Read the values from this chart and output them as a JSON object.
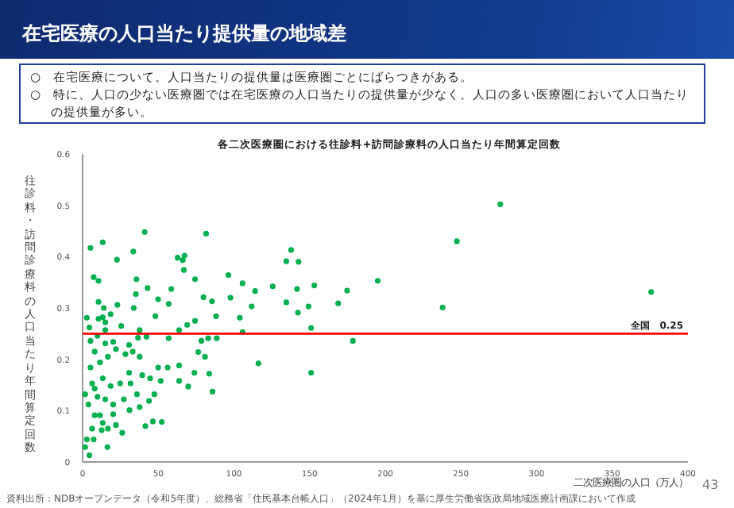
{
  "chart_data": {
    "type": "scatter",
    "title": "在宅医療の人口当たり提供量の地域差",
    "subtitle": "各二次医療圏における往診料+訪問診療料の人口当たり年間算定回数",
    "xlabel": "二次医療圏の人口（万人）",
    "ylabel": "往診料・訪問診療料の人口当たり年間算定回数",
    "annotations": [
      "○　在宅医療について、人口当たりの提供量は医療圏ごとにばらつきがある。",
      "○　特に、人口の少ない医療圏では在宅医療の人口当たりの提供量が少なく、人口の多い医療圏において人口当たりの提供量が多い。",
      "資料出所：NDBオープンデータ（令和5年度）、総務省「住民基本台帳人口」（2024年1月）を基に厚生労働省医政局地域医療計画課において作成",
      "43"
    ],
    "xlim": [
      0,
      400
    ],
    "xticks": [
      0,
      50,
      100,
      150,
      200,
      250,
      300,
      350,
      400
    ],
    "ylim": [
      0,
      0.6
    ],
    "yticks": [
      0,
      0.1,
      0.2,
      0.3,
      0.4,
      0.5,
      0.6
    ],
    "marker": "circle",
    "ref_lines": [
      {
        "axis": "y",
        "value": 0.25,
        "label": "全国　0.25",
        "color": "#ff0000"
      }
    ],
    "series": [
      {
        "color": "#00b050",
        "x": [
          5.2,
          13.3,
          41,
          81.6,
          33.5,
          22.7,
          62.8,
          67.3,
          66.2,
          66.9,
          96.3,
          137.8,
          134.6,
          142.7,
          195,
          7.3,
          10.5,
          35.6,
          35.2,
          42.9,
          58.6,
          74.3,
          79.9,
          85.5,
          97.7,
          105.7,
          114,
          125.6,
          141.7,
          153.1,
          174.8,
          168.9,
          134.6,
          111.7,
          149.3,
          142.3,
          49.9,
          56.9,
          10.5,
          14,
          23,
          33.8,
          2.8,
          10.5,
          48.1,
          88.2,
          103.9,
          63.8,
          74.3,
          69.1,
          105.7,
          151,
          178.6,
          83,
          88.6,
          78.5,
          76.4,
          116.2,
          80.9,
          83.7,
          151,
          73.9,
          69.8,
          63.8,
          63.8,
          85.8,
          49.9,
          51.6,
          47.4,
          43.9,
          41.5,
          46.4,
          52.3,
          37.7,
          31,
          26.2,
          20.2,
          22,
          12.6,
          16.4,
          4.5,
          1.7,
          2.8,
          6.3,
          8,
          3.8,
          9.8,
          1.7,
          6.3,
          13.3,
          18.5,
          24.8,
          30.7,
          39.4,
          44.6,
          5.2,
          11.5,
          16.7,
          22,
          28.3,
          33.1,
          37.7,
          8,
          5.2,
          9.8,
          15,
          20.2,
          30.7,
          36.6,
          42.2,
          4.5,
          15,
          25.5,
          15,
          18.5,
          13.3,
          31.7,
          35.9,
          27.2,
          15,
          8,
          20.2,
          11.5,
          16.7,
          7.3,
          13.3,
          56.9,
          37.7,
          56.2,
          237.9,
          247.3,
          276,
          375.7
        ],
        "values": [
          0.417,
          0.428,
          0.448,
          0.445,
          0.41,
          0.394,
          0.398,
          0.402,
          0.393,
          0.374,
          0.364,
          0.413,
          0.391,
          0.39,
          0.353,
          0.36,
          0.353,
          0.356,
          0.327,
          0.339,
          0.337,
          0.356,
          0.321,
          0.313,
          0.32,
          0.348,
          0.333,
          0.342,
          0.337,
          0.344,
          0.334,
          0.309,
          0.311,
          0.303,
          0.303,
          0.291,
          0.317,
          0.308,
          0.312,
          0.3,
          0.306,
          0.3,
          0.281,
          0.279,
          0.284,
          0.284,
          0.281,
          0.257,
          0.275,
          0.267,
          0.253,
          0.261,
          0.236,
          0.241,
          0.241,
          0.236,
          0.214,
          0.192,
          0.205,
          0.172,
          0.174,
          0.174,
          0.147,
          0.158,
          0.188,
          0.137,
          0.184,
          0.158,
          0.132,
          0.119,
          0.07,
          0.079,
          0.078,
          0.107,
          0.101,
          0.057,
          0.093,
          0.072,
          0.062,
          0.029,
          0.013,
          0.029,
          0.044,
          0.065,
          0.091,
          0.112,
          0.127,
          0.132,
          0.153,
          0.163,
          0.148,
          0.153,
          0.174,
          0.169,
          0.163,
          0.184,
          0.194,
          0.205,
          0.22,
          0.21,
          0.215,
          0.205,
          0.215,
          0.236,
          0.246,
          0.231,
          0.234,
          0.228,
          0.242,
          0.244,
          0.262,
          0.257,
          0.265,
          0.272,
          0.288,
          0.282,
          0.153,
          0.132,
          0.122,
          0.122,
          0.143,
          0.112,
          0.091,
          0.065,
          0.044,
          0.076,
          0.241,
          0.257,
          0.184,
          0.301,
          0.43,
          0.502,
          0.331
        ]
      }
    ]
  }
}
